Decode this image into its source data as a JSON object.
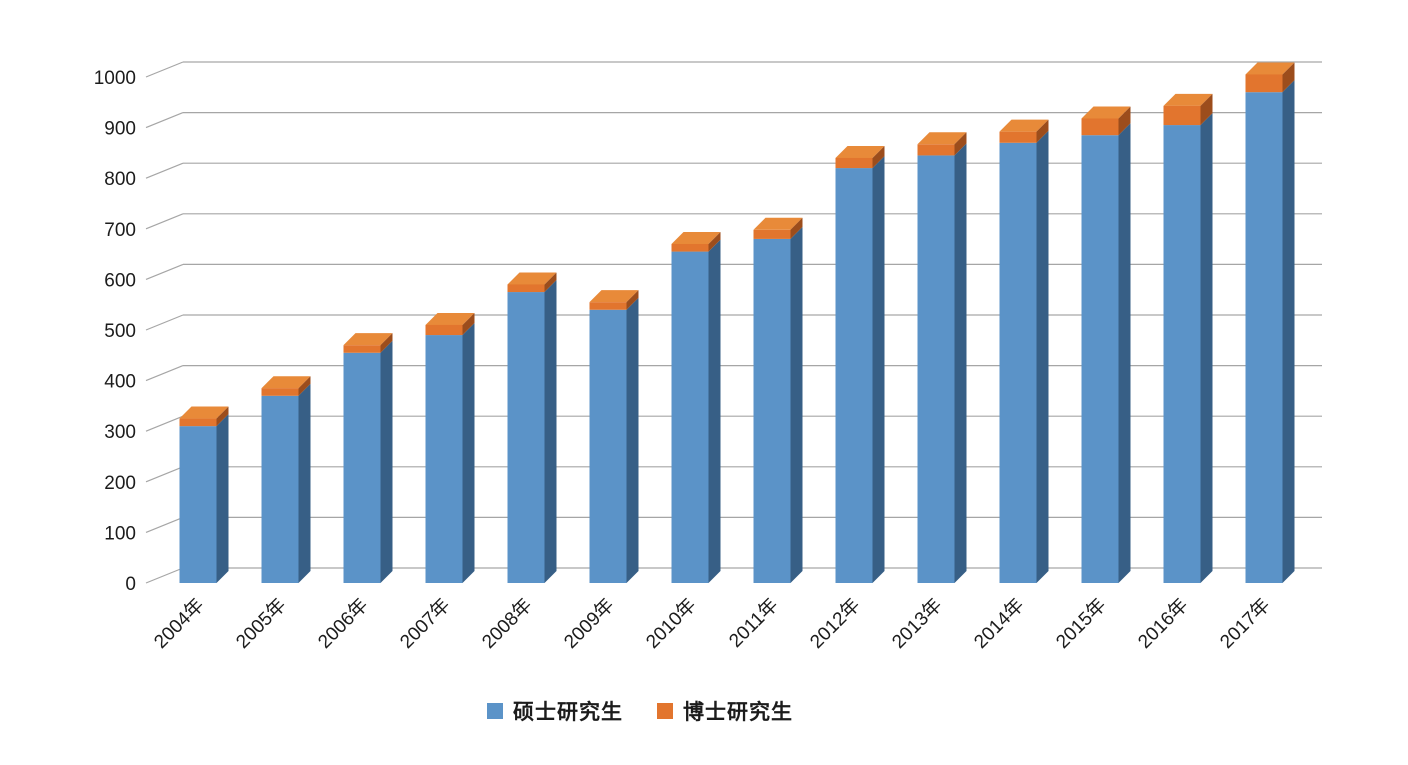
{
  "chart_data": {
    "type": "bar",
    "variant": "3d-stacked-column",
    "title": "",
    "xlabel": "",
    "ylabel": "",
    "categories": [
      "2004年",
      "2005年",
      "2006年",
      "2007年",
      "2008年",
      "2009年",
      "2010年",
      "2011年",
      "2012年",
      "2013年",
      "2014年",
      "2015年",
      "2016年",
      "2017年"
    ],
    "series": [
      {
        "name": "硕士研究生",
        "color": "#5B93C8",
        "side_color": "#375F86",
        "top_color": "#7FAFD9",
        "values": [
          310,
          370,
          455,
          490,
          575,
          540,
          655,
          680,
          820,
          845,
          870,
          885,
          905,
          970
        ]
      },
      {
        "name": "博士研究生",
        "color": "#E2752E",
        "side_color": "#9C4D1C",
        "top_color": "#E88A39",
        "values": [
          15,
          15,
          15,
          20,
          15,
          15,
          15,
          18,
          20,
          22,
          22,
          33,
          38,
          35
        ]
      }
    ],
    "ylim": [
      0,
      1000
    ],
    "ytick_step": 100,
    "yticks": [
      "0",
      "100",
      "200",
      "300",
      "400",
      "500",
      "600",
      "700",
      "800",
      "900",
      "1000"
    ],
    "grid": true,
    "grid_color": "#A6A6A6",
    "axis_text_color": "#1C1C1C",
    "legend_position": "bottom",
    "background": "#FFFFFF"
  }
}
